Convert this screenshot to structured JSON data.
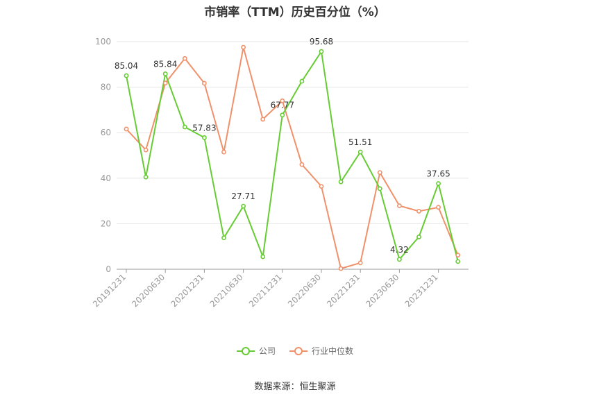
{
  "title": "市销率（TTM）历史百分位（%）",
  "source": "数据来源：恒生聚源",
  "colors": {
    "company": "#66cc33",
    "industry": "#f0916a",
    "grid": "#e6e6e6",
    "axis": "#999999"
  },
  "chart_data": {
    "type": "line",
    "title": "市销率（TTM）历史百分位（%）",
    "xlabel": "",
    "ylabel": "",
    "ylim": [
      0,
      100
    ],
    "yticks": [
      0,
      20,
      40,
      60,
      80,
      100
    ],
    "grid": true,
    "legend_position": "bottom",
    "x": [
      "20191231",
      "20200331",
      "20200630",
      "20200930",
      "20201231",
      "20210331",
      "20210630",
      "20210930",
      "20211231",
      "20220331",
      "20220630",
      "20220930",
      "20221231",
      "20230331",
      "20230630",
      "20230930",
      "20231231",
      "20240331"
    ],
    "x_tick_labels": [
      "20191231",
      "20200630",
      "20201231",
      "20210630",
      "20211231",
      "20220630",
      "20221231",
      "20230630",
      "20231231"
    ],
    "series": [
      {
        "name": "公司",
        "color": "#66cc33",
        "values": [
          85.04,
          40.5,
          85.84,
          62.5,
          57.83,
          13.8,
          27.71,
          5.5,
          67.77,
          82.6,
          95.68,
          38.4,
          51.51,
          35.4,
          4.32,
          14.2,
          37.65,
          3.4
        ]
      },
      {
        "name": "行业中位数",
        "color": "#f0916a",
        "values": [
          61.6,
          52.4,
          81.8,
          92.6,
          81.7,
          51.5,
          97.5,
          65.9,
          74.0,
          46.0,
          36.4,
          0.3,
          2.8,
          42.5,
          27.9,
          25.5,
          27.2,
          6.2
        ]
      }
    ],
    "annotations": [
      {
        "series": 0,
        "index": 0,
        "text": "85.04"
      },
      {
        "series": 0,
        "index": 2,
        "text": "85.84"
      },
      {
        "series": 0,
        "index": 4,
        "text": "57.83"
      },
      {
        "series": 0,
        "index": 6,
        "text": "27.71"
      },
      {
        "series": 0,
        "index": 8,
        "text": "67.77"
      },
      {
        "series": 0,
        "index": 10,
        "text": "95.68"
      },
      {
        "series": 0,
        "index": 12,
        "text": "51.51"
      },
      {
        "series": 0,
        "index": 14,
        "text": "4.32"
      },
      {
        "series": 0,
        "index": 16,
        "text": "37.65"
      }
    ]
  }
}
